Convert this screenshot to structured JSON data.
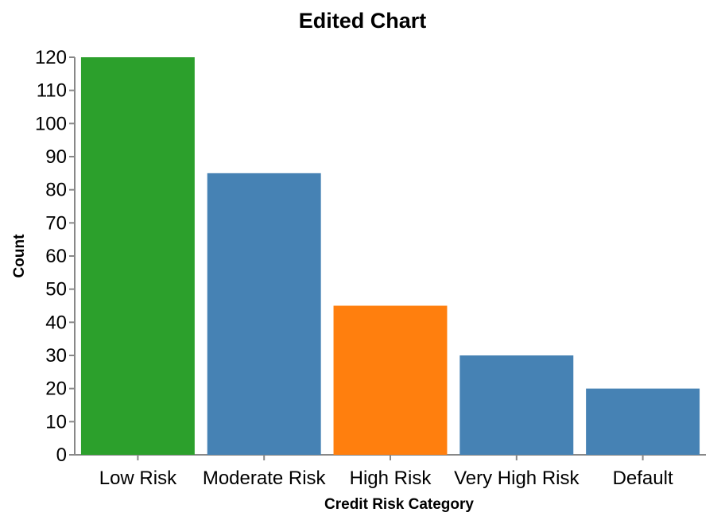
{
  "chart_data": {
    "type": "bar",
    "title": "Edited Chart",
    "xlabel": "Credit Risk Category",
    "ylabel": "Count",
    "categories": [
      "Low Risk",
      "Moderate Risk",
      "High Risk",
      "Very High Risk",
      "Default"
    ],
    "values": [
      120,
      85,
      45,
      30,
      20
    ],
    "bar_colors": [
      "#2ca02c",
      "#4682b4",
      "#ff7f0e",
      "#4682b4",
      "#4682b4"
    ],
    "ylim": [
      0,
      120
    ],
    "yticks": [
      0,
      10,
      20,
      30,
      40,
      50,
      60,
      70,
      80,
      90,
      100,
      110,
      120
    ],
    "grid": false,
    "legend": "none"
  },
  "colors": {
    "axis": "#888888",
    "text": "#000000"
  }
}
